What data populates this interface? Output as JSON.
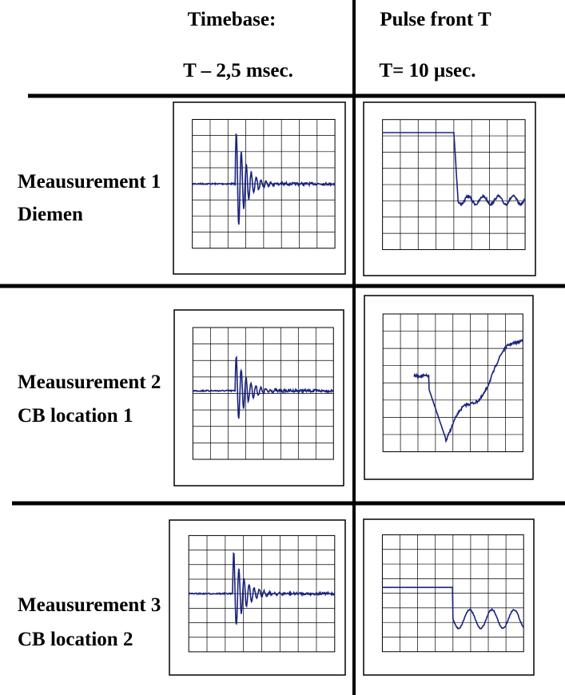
{
  "header": {
    "col1_title": "Timebase:",
    "col1_value": "T – 2,5 msec.",
    "col2_title": "Pulse front T",
    "col2_value": "T= 10 µsec."
  },
  "rows": [
    {
      "label": "Meausurement 1",
      "sublabel": "Diemen"
    },
    {
      "label": "Meausurement 2",
      "sublabel": "CB location 1"
    },
    {
      "label": "Meausurement 3",
      "sublabel": "CB location 2"
    }
  ]
}
